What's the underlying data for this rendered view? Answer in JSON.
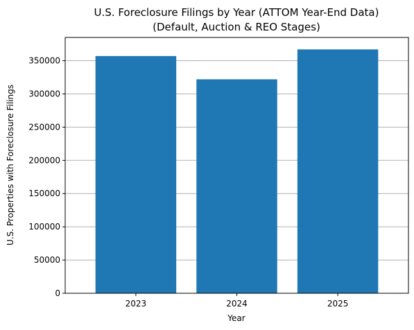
{
  "chart_data": {
    "type": "bar",
    "title_line1": "U.S. Foreclosure Filings by Year (ATTOM Year-End Data)",
    "title_line2": "(Default, Auction & REO Stages)",
    "xlabel": "Year",
    "ylabel": "U.S. Properties with Foreclosure Filings",
    "categories": [
      "2023",
      "2024",
      "2025"
    ],
    "values": [
      357000,
      322000,
      367000
    ],
    "ylim": [
      0,
      385000
    ],
    "yticks": [
      0,
      50000,
      100000,
      150000,
      200000,
      250000,
      300000,
      350000
    ],
    "ytick_labels": [
      "0",
      "50000",
      "100000",
      "150000",
      "200000",
      "250000",
      "300000",
      "350000"
    ],
    "grid": "y-axis only",
    "bar_color": "#1f77b4",
    "grid_color": "#b0b0b0"
  }
}
